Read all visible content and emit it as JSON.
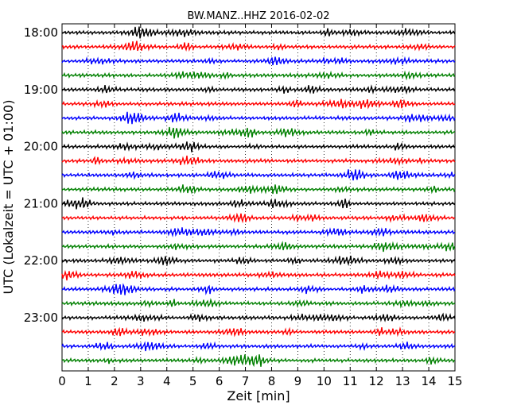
{
  "chart_data": {
    "type": "line",
    "title": "BW.MANZ..HHZ 2016-02-02",
    "xlabel": "Zeit  [min]",
    "ylabel": "UTC (Lokalzeit = UTC + 01:00)",
    "xlim": [
      0,
      15
    ],
    "x_ticks": [
      "0",
      "1",
      "2",
      "3",
      "4",
      "5",
      "6",
      "7",
      "8",
      "9",
      "10",
      "11",
      "12",
      "13",
      "14",
      "15"
    ],
    "y_ticks": [
      "18:00",
      "19:00",
      "20:00",
      "21:00",
      "22:00",
      "23:00"
    ],
    "grid": "vertical dotted",
    "trace_interval_min": 15,
    "start_time": "18:00",
    "trace_count": 24,
    "colors": [
      "#000000",
      "#ff0000",
      "#0000ff",
      "#008000"
    ]
  }
}
